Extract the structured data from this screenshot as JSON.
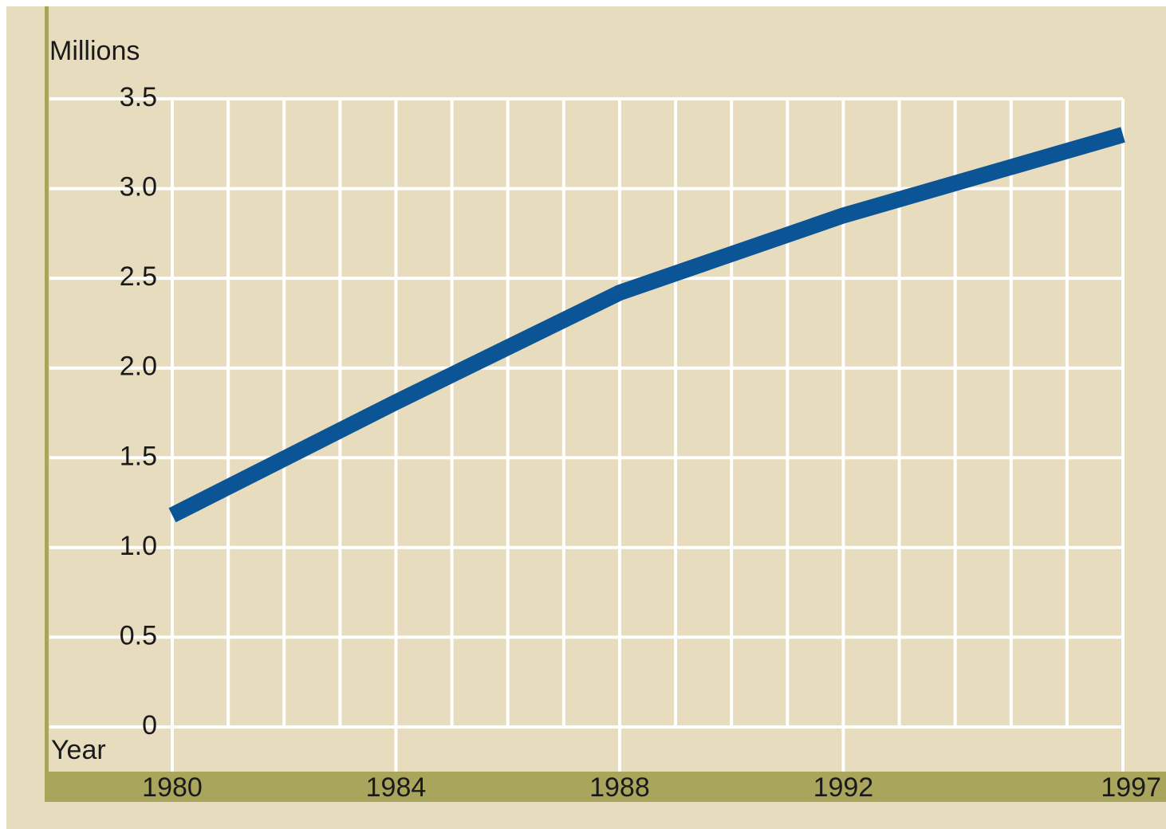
{
  "chart_data": {
    "type": "line",
    "y_label": "Millions",
    "x_label": "Year",
    "x": [
      1980,
      1984,
      1988,
      1992,
      1997
    ],
    "series": [
      {
        "name": null,
        "color": "#0b5597",
        "values": [
          1.18,
          1.81,
          2.42,
          2.85,
          3.3
        ]
      }
    ],
    "xlim": [
      1980,
      1997
    ],
    "xticks": [
      1980,
      1984,
      1988,
      1992,
      1997
    ],
    "ylim": [
      0,
      3.5
    ],
    "yticks": [
      0,
      0.5,
      {
        "value": 1,
        "label": "1.0"
      },
      1.5,
      {
        "value": 2,
        "label": "2.0"
      },
      2.5,
      {
        "value": 3,
        "label": "3.0"
      },
      3.5
    ],
    "grid": true
  }
}
